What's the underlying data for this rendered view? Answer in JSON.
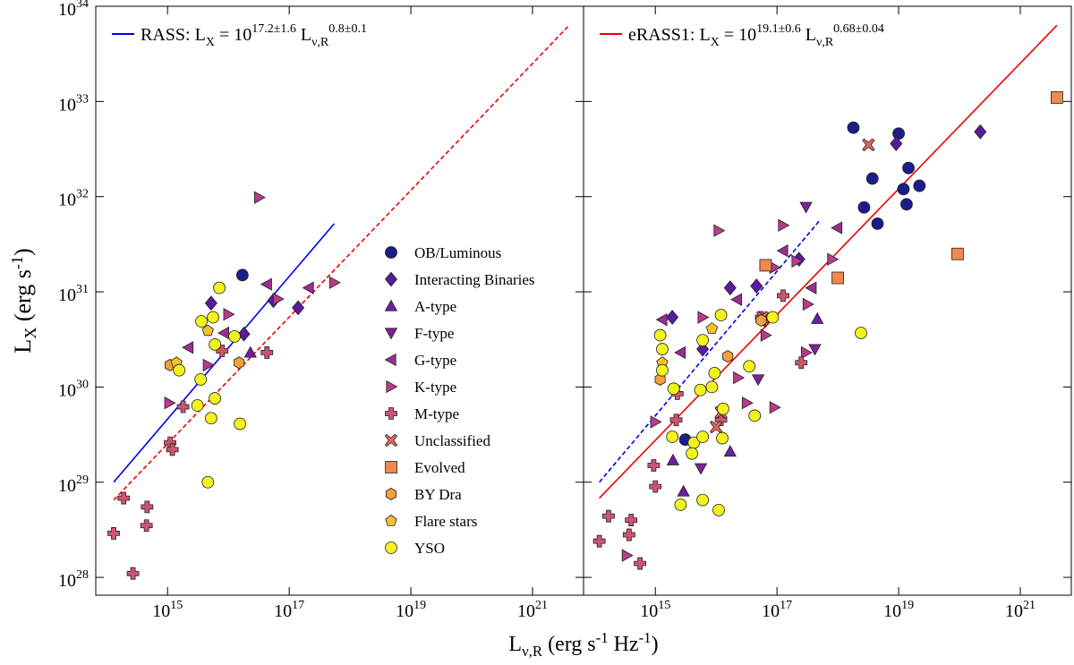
{
  "chart_data": [
    {
      "type": "scatter",
      "log_x": true,
      "log_y": true,
      "title": "RASS: L_{X} = 10^{17.2±1.6} L_{ν,R}^{0.8±0.1}",
      "xlabel": "L_{ν,R} (erg s^{-1} Hz^{-1})",
      "ylabel": "L_{X} (erg s^{-1})",
      "xlim": [
        66000000000000.0,
        6.9e+21
      ],
      "ylim": [
        6.5e+27,
        1e+34
      ],
      "xticks": [
        {
          "value": 1000000000000000.0,
          "label": "10^{15}"
        },
        {
          "value": 1e+17,
          "label": "10^{17}"
        },
        {
          "value": 1e+19,
          "label": "10^{19}"
        },
        {
          "value": 1e+21,
          "label": "10^{21}"
        }
      ],
      "yticks": [
        {
          "value": 1e+28,
          "label": "10^{28}"
        },
        {
          "value": 1e+29,
          "label": "10^{29}"
        },
        {
          "value": 1e+30,
          "label": "10^{30}"
        },
        {
          "value": 1e+31,
          "label": "10^{31}"
        },
        {
          "value": 1e+32,
          "label": "10^{32}"
        },
        {
          "value": 1e+33,
          "label": "10^{33}"
        },
        {
          "value": 1e+34,
          "label": "10^{34}"
        }
      ],
      "legend": "right",
      "lines": [
        {
          "color": "#0000ee",
          "style": "solid",
          "x": [
            130000000000000.0,
            5.5e+17
          ],
          "values": [
            1e+29,
            5.2e+31
          ]
        },
        {
          "color": "#ee0000",
          "style": "dashed",
          "x": [
            130000000000000.0,
            4e+21
          ],
          "values": [
            6.5e+28,
            6.3e+33
          ]
        }
      ],
      "series": [
        {
          "name": "OB/Luminous",
          "color": "#1c1c8a",
          "marker": "circle",
          "x": [
            1.7e+16
          ],
          "values": [
            1.5e+31
          ]
        },
        {
          "name": "Interacting Binaries",
          "color": "#5a1a9e",
          "marker": "diamond",
          "x": [
            5200000000000000.0,
            1.8e+16,
            5.5e+16,
            1.4e+17
          ],
          "values": [
            7.6e+30,
            3.6e+30,
            8.1e+30,
            6.8e+30
          ]
        },
        {
          "name": "A-type",
          "color": "#6a1fa4",
          "marker": "tri-up",
          "x": [
            2.3e+16
          ],
          "values": [
            2.3e+30
          ]
        },
        {
          "name": "F-type",
          "color": "#7e2396",
          "marker": "tri-down",
          "x": [],
          "values": []
        },
        {
          "name": "G-type",
          "color": "#9c2d90",
          "marker": "tri-left",
          "x": [
            2200000000000000.0,
            8500000000000000.0,
            2.1e+17,
            4.3e+16
          ],
          "values": [
            2.6e+30,
            3.7e+30,
            1.1e+31,
            1.2e+31
          ]
        },
        {
          "name": "K-type",
          "color": "#b83b8a",
          "marker": "tri-right",
          "x": [
            3.2e+16,
            1070000000000000.0,
            4600000000000000.0,
            1e+16,
            6.5e+16,
            5.5e+17
          ],
          "values": [
            9.8e+31,
            6.8e+29,
            1.7e+30,
            5.8e+30,
            8.4e+30,
            1.25e+31
          ]
        },
        {
          "name": "M-type",
          "color": "#cc5570",
          "marker": "plus",
          "x": [
            130000000000000.0,
            190000000000000.0,
            460000000000000.0,
            450000000000000.0,
            270000000000000.0,
            1100000000000000.0,
            1200000000000000.0,
            4.3e+16,
            1800000000000000.0,
            7900000000000000.0
          ],
          "values": [
            2.9e+28,
            6.8e+28,
            5.5e+28,
            3.5e+28,
            1.1e+28,
            2.6e+29,
            2.2e+29,
            2.3e+30,
            6.2e+29,
            2.4e+30
          ]
        },
        {
          "name": "Unclassified",
          "color": "#e5695a",
          "marker": "cross",
          "x": [],
          "values": []
        },
        {
          "name": "Evolved",
          "color": "#f2884e",
          "marker": "square",
          "x": [],
          "values": []
        },
        {
          "name": "BY Dra",
          "color": "#f5a03c",
          "marker": "hexagon",
          "x": [
            1100000000000000.0,
            1.5e+16
          ],
          "values": [
            1.7e+30,
            1.8e+30
          ]
        },
        {
          "name": "Flare stars",
          "color": "#f2c22e",
          "marker": "pentagon",
          "x": [
            4600000000000000.0,
            1400000000000000.0
          ],
          "values": [
            3.9e+30,
            1.8e+30
          ]
        },
        {
          "name": "YSO",
          "color": "#f2f21e",
          "marker": "circle",
          "x": [
            3600000000000000.0,
            7100000000000000.0,
            5600000000000000.0,
            1550000000000000.0,
            3500000000000000.0,
            3100000000000000.0,
            6000000000000000.0,
            5200000000000000.0,
            1.55e+16,
            4600000000000000.0,
            1.26e+16,
            6000000000000000.0
          ],
          "values": [
            4.9e+30,
            1.1e+31,
            5.4e+30,
            1.5e+30,
            1.2e+30,
            6.4e+29,
            7.6e+29,
            4.7e+29,
            4.1e+29,
            1e+29,
            3.4e+30,
            2.8e+30
          ]
        }
      ]
    },
    {
      "type": "scatter",
      "log_x": true,
      "log_y": true,
      "title": "eRASS1: L_{X} = 10^{19.1±0.6} L_{ν,R}^{0.68±0.04}",
      "xlim": [
        66000000000000.0,
        6.9e+21
      ],
      "ylim": [
        6.5e+27,
        1e+34
      ],
      "xticks": [
        {
          "value": 1000000000000000.0,
          "label": "10^{15}"
        },
        {
          "value": 1e+17,
          "label": "10^{17}"
        },
        {
          "value": 1e+19,
          "label": "10^{19}"
        },
        {
          "value": 1e+21,
          "label": "10^{21}"
        }
      ],
      "yticks": [
        1e+28,
        1e+29,
        1e+30,
        1e+31,
        1e+32,
        1e+33,
        1e+34
      ],
      "lines": [
        {
          "color": "#ee0000",
          "style": "solid",
          "x": [
            120000000000000.0,
            4e+21
          ],
          "values": [
            6.8e+28,
            6.3e+33
          ]
        },
        {
          "color": "#0000ee",
          "style": "dashed",
          "x": [
            120000000000000.0,
            4.9e+17
          ],
          "values": [
            1e+29,
            5.5e+31
          ]
        }
      ],
      "series": [
        {
          "x": [
            1.8e+18,
            1e+19,
            3.7e+18,
            1.45e+19,
            2.2e+19,
            1.2e+19,
            1.35e+19,
            2.7e+18,
            4.5e+18,
            3100000000000000.0
          ],
          "values": [
            5.3e+32,
            4.6e+32,
            1.55e+32,
            2e+32,
            1.3e+32,
            1.2e+32,
            8.3e+31,
            7.7e+31,
            5.2e+31,
            2.8e+29
          ]
        },
        {
          "x": [
            2.2e+20,
            9.1e+18,
            1.7e+16,
            1900000000000000.0,
            6000000000000000.0,
            4.6e+16,
            2.3e+17
          ],
          "values": [
            4.8e+32,
            3.6e+32,
            1.1e+31,
            5.4e+30,
            2.5e+30,
            1.15e+31,
            2.2e+31
          ]
        },
        {
          "x": [
            1950000000000000.0,
            2900000000000000.0,
            1.7e+16,
            4.6e+17
          ],
          "values": [
            1.7e+29,
            8e+28,
            2.1e+29,
            5.2e+30
          ]
        },
        {
          "x": [
            3e+17,
            4.9e+16,
            5600000000000000.0,
            4.2e+17
          ],
          "values": [
            7.8e+31,
            1.2e+30,
            1.4e+29,
            2.5e+30
          ]
        },
        {
          "x": [
            1300000000000000.0,
            2600000000000000.0,
            2.2e+16,
            1.26e+17,
            9.8e+17,
            3.7e+17,
            5.5e+16
          ],
          "values": [
            5.1e+30,
            2.3e+30,
            8.3e+30,
            2.7e+31,
            4.7e+31,
            1.1e+31,
            4.9e+30
          ]
        },
        {
          "x": [
            1.1e+16,
            1.26e+17,
            1000000000000000.0,
            340000000000000.0,
            6000000000000000.0,
            9.1e+16,
            2.1e+17,
            3.2e+16,
            2.3e+16,
            6.5e+16,
            8.1e+17,
            3.2e+17,
            9.1e+16,
            3e+17
          ],
          "values": [
            4.4e+31,
            5e+31,
            4.3e+29,
            1.7e+28,
            5.4e+30,
            1.8e+31,
            2.1e+31,
            6.8e+29,
            1.25e+30,
            3.5e+30,
            2.2e+31,
            7.4e+30,
            6.1e+29,
            2.3e+30
          ]
        },
        {
          "x": [
            120000000000000.0,
            170000000000000.0,
            400000000000000.0,
            370000000000000.0,
            560000000000000.0,
            1000000000000000.0,
            940000000000000.0,
            2300000000000000.0,
            2200000000000000.0,
            1.2e+16,
            5.5e+16,
            1.26e+17,
            2.5e+17
          ],
          "values": [
            2.4e+28,
            4.4e+28,
            4e+28,
            2.8e+28,
            1.4e+28,
            9e+28,
            1.5e+29,
            8.5e+29,
            4.5e+29,
            4.5e+29,
            5.4e+30,
            9.1e+30,
            1.8e+30
          ]
        },
        {
          "x": [
            3.2e+18,
            1e+16,
            1.2e+16,
            5.8e+16
          ],
          "values": [
            3.5e+32,
            3.8e+29,
            5.4e+29,
            5.4e+30
          ]
        },
        {
          "x": [
            4e+21,
            9.3e+19,
            1e+18,
            6.5e+16
          ],
          "values": [
            1.1e+33,
            2.5e+31,
            1.4e+31,
            1.9e+31
          ]
        },
        {
          "x": [
            1200000000000000.0,
            1.55e+16,
            5.5e+16
          ],
          "values": [
            1.2e+30,
            2.1e+30,
            5e+30
          ]
        },
        {
          "x": [
            1300000000000000.0,
            8500000000000000.0
          ],
          "values": [
            1.8e+30,
            4.1e+30
          ]
        },
        {
          "x": [
            1300000000000000.0,
            1300000000000000.0,
            2000000000000000.0,
            1200000000000000.0,
            1900000000000000.0,
            4300000000000000.0,
            4000000000000000.0,
            6000000000000000.0,
            5500000000000000.0,
            8500000000000000.0,
            9400000000000000.0,
            2600000000000000.0,
            6000000000000000.0,
            1.1e+16,
            1.26e+16,
            1.3e+16,
            4.3e+16,
            3.5e+16,
            8.5e+16,
            2.4e+18,
            6000000000000000.0,
            1.2e+16
          ],
          "values": [
            2.5e+30,
            1.5e+30,
            9.6e+29,
            3.5e+30,
            3e+29,
            2.6e+29,
            2e+29,
            3e+29,
            9.3e+29,
            1e+30,
            1.4e+30,
            5.8e+28,
            6.5e+28,
            5.1e+28,
            2.9e+29,
            5.9e+29,
            5e+29,
            1.65e+30,
            5.4e+30,
            3.7e+30,
            3.1e+30,
            5.7e+30
          ]
        }
      ]
    }
  ]
}
